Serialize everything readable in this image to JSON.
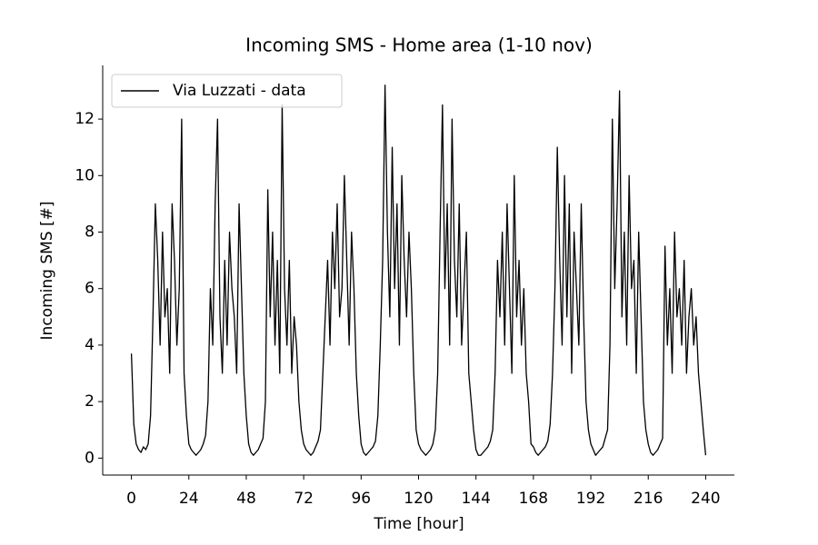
{
  "chart_data": {
    "type": "line",
    "title": "Incoming SMS - Home area (1-10 nov)",
    "xlabel": "Time [hour]",
    "ylabel": "Incoming SMS [#]",
    "x": [
      0,
      1,
      2,
      3,
      4,
      5,
      6,
      7,
      8,
      9,
      10,
      11,
      12,
      13,
      14,
      15,
      16,
      17,
      18,
      19,
      20,
      21,
      22,
      23,
      24,
      25,
      26,
      27,
      28,
      29,
      30,
      31,
      32,
      33,
      34,
      35,
      36,
      37,
      38,
      39,
      40,
      41,
      42,
      43,
      44,
      45,
      46,
      47,
      48,
      49,
      50,
      51,
      52,
      53,
      54,
      55,
      56,
      57,
      58,
      59,
      60,
      61,
      62,
      63,
      64,
      65,
      66,
      67,
      68,
      69,
      70,
      71,
      72,
      73,
      74,
      75,
      76,
      77,
      78,
      79,
      80,
      81,
      82,
      83,
      84,
      85,
      86,
      87,
      88,
      89,
      90,
      91,
      92,
      93,
      94,
      95,
      96,
      97,
      98,
      99,
      100,
      101,
      102,
      103,
      104,
      105,
      106,
      107,
      108,
      109,
      110,
      111,
      112,
      113,
      114,
      115,
      116,
      117,
      118,
      119,
      120,
      121,
      122,
      123,
      124,
      125,
      126,
      127,
      128,
      129,
      130,
      131,
      132,
      133,
      134,
      135,
      136,
      137,
      138,
      139,
      140,
      141,
      142,
      143,
      144,
      145,
      146,
      147,
      148,
      149,
      150,
      151,
      152,
      153,
      154,
      155,
      156,
      157,
      158,
      159,
      160,
      161,
      162,
      163,
      164,
      165,
      166,
      167,
      168,
      169,
      170,
      171,
      172,
      173,
      174,
      175,
      176,
      177,
      178,
      179,
      180,
      181,
      182,
      183,
      184,
      185,
      186,
      187,
      188,
      189,
      190,
      191,
      192,
      193,
      194,
      195,
      196,
      197,
      198,
      199,
      200,
      201,
      202,
      203,
      204,
      205,
      206,
      207,
      208,
      209,
      210,
      211,
      212,
      213,
      214,
      215,
      216,
      217,
      218,
      219,
      220,
      221,
      222,
      223,
      224,
      225,
      226,
      227,
      228,
      229,
      230,
      231,
      232,
      233,
      234,
      235,
      236,
      237,
      238,
      239,
      240
    ],
    "series": [
      {
        "name": "Via Luzzati - data",
        "color": "#000000",
        "values": [
          3.7,
          1.2,
          0.5,
          0.3,
          0.2,
          0.4,
          0.3,
          0.5,
          1.5,
          5,
          9,
          7,
          4,
          8,
          5,
          6,
          3,
          9,
          7,
          4,
          6,
          12,
          3,
          1.5,
          0.5,
          0.3,
          0.2,
          0.1,
          0.2,
          0.3,
          0.5,
          0.8,
          2,
          6,
          4,
          9,
          12,
          5,
          3,
          7,
          4,
          8,
          6,
          5,
          3,
          9,
          6,
          3,
          1.5,
          0.5,
          0.2,
          0.1,
          0.2,
          0.3,
          0.5,
          0.7,
          2,
          9.5,
          5,
          8,
          4,
          7,
          3,
          12.5,
          6,
          4,
          7,
          3,
          5,
          4,
          2,
          1,
          0.5,
          0.3,
          0.2,
          0.1,
          0.2,
          0.4,
          0.6,
          1,
          3,
          5,
          7,
          4,
          8,
          6,
          9,
          5,
          6,
          10,
          7,
          4,
          8,
          6,
          3,
          1.5,
          0.5,
          0.2,
          0.1,
          0.2,
          0.3,
          0.4,
          0.6,
          1.5,
          4,
          7,
          13.2,
          8,
          5,
          11,
          6,
          9,
          4,
          10,
          7,
          5,
          8,
          6,
          3,
          1,
          0.5,
          0.3,
          0.2,
          0.1,
          0.2,
          0.3,
          0.5,
          1,
          3,
          8,
          12.5,
          6,
          9,
          4,
          12,
          7,
          5,
          9,
          4,
          6,
          8,
          3,
          2,
          1,
          0.3,
          0.1,
          0.1,
          0.2,
          0.3,
          0.4,
          0.6,
          1,
          3,
          7,
          5,
          8,
          4,
          9,
          6,
          3,
          10,
          5,
          7,
          4,
          6,
          3,
          2,
          0.5,
          0.4,
          0.2,
          0.1,
          0.2,
          0.3,
          0.4,
          0.6,
          1.2,
          3,
          6,
          11,
          7,
          4,
          10,
          5,
          9,
          3,
          8,
          6,
          4,
          9,
          5,
          2,
          1,
          0.5,
          0.3,
          0.1,
          0.2,
          0.3,
          0.4,
          0.7,
          1,
          4,
          12,
          6,
          9,
          13,
          5,
          8,
          4,
          10,
          6,
          7,
          3,
          8,
          5,
          2,
          1,
          0.5,
          0.2,
          0.1,
          0.2,
          0.3,
          0.5,
          0.7,
          7.5,
          4,
          6,
          3,
          8,
          5,
          6,
          4,
          7,
          3,
          5,
          6,
          4,
          5,
          3,
          2,
          1,
          0.1
        ]
      }
    ],
    "xlim": [
      -12,
      252
    ],
    "ylim": [
      -0.6,
      13.9
    ],
    "xticks": [
      0,
      24,
      48,
      72,
      96,
      120,
      144,
      168,
      192,
      216,
      240
    ],
    "yticks": [
      0,
      2,
      4,
      6,
      8,
      10,
      12
    ],
    "legend": "upper left"
  }
}
